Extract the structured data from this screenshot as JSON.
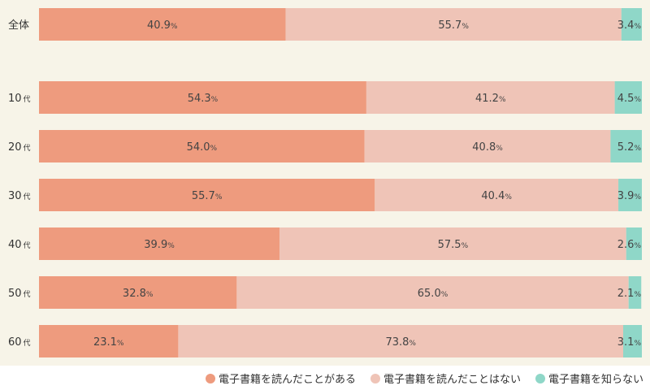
{
  "chart_data": {
    "type": "bar",
    "orientation": "horizontal-stacked-100",
    "categories": [
      {
        "main": "全体",
        "suffix": ""
      },
      {
        "main": "10",
        "suffix": "代"
      },
      {
        "main": "20",
        "suffix": "代"
      },
      {
        "main": "30",
        "suffix": "代"
      },
      {
        "main": "40",
        "suffix": "代"
      },
      {
        "main": "50",
        "suffix": "代"
      },
      {
        "main": "60",
        "suffix": "代"
      }
    ],
    "series": [
      {
        "name": "電子書籍を読んだことがある",
        "color": "#ee9b7e",
        "values": [
          40.9,
          54.3,
          54.0,
          55.7,
          39.9,
          32.8,
          23.1
        ]
      },
      {
        "name": "電子書籍を読んだことはない",
        "color": "#efc4b7",
        "values": [
          55.7,
          41.2,
          40.8,
          40.4,
          57.5,
          65.0,
          73.8
        ]
      },
      {
        "name": "電子書籍を知らない",
        "color": "#8fd7c8",
        "values": [
          3.4,
          4.5,
          5.2,
          3.9,
          2.6,
          2.1,
          3.1
        ]
      }
    ],
    "value_suffix": "%",
    "xlim": [
      0,
      100
    ],
    "legend_position": "bottom-right"
  }
}
